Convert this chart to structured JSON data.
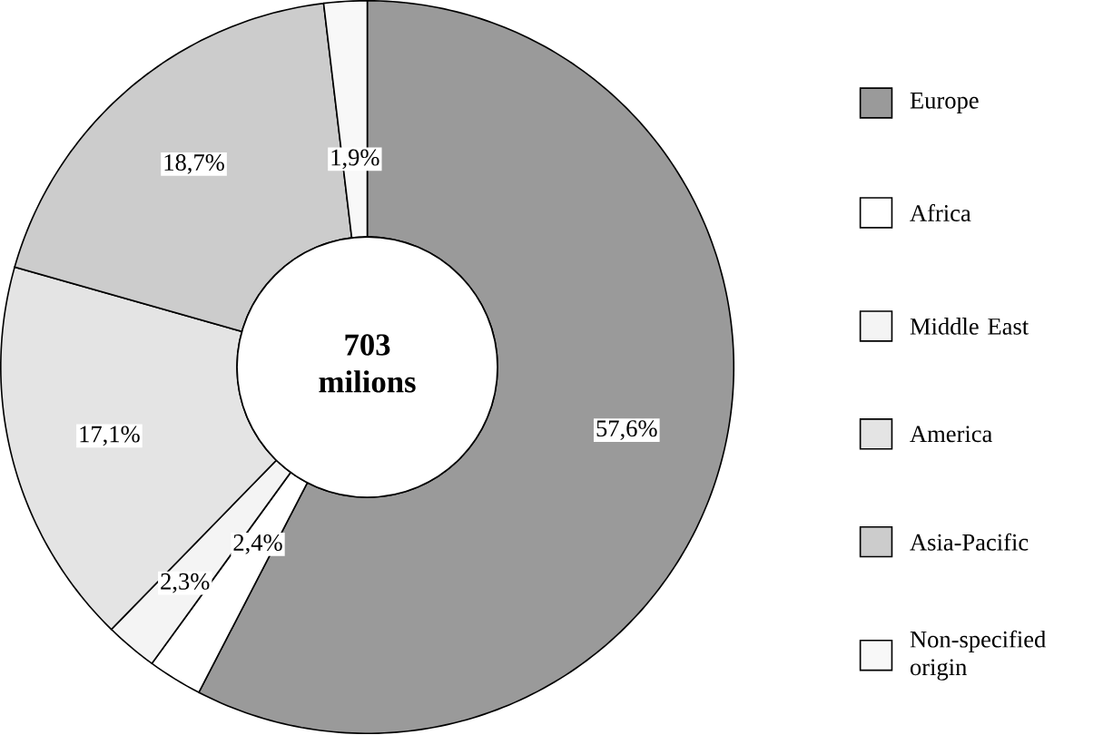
{
  "chart_data": {
    "type": "donut",
    "categories": [
      "Europe",
      "Africa",
      "Middle East",
      "America",
      "Asia-Pacific",
      "Non-specified origin"
    ],
    "values": [
      57.6,
      2.4,
      2.3,
      17.1,
      18.7,
      1.9
    ],
    "value_labels": [
      "57,6%",
      "2,4%",
      "2,3%",
      "17,1%",
      "18,7%",
      "1,9%"
    ],
    "colors": [
      "#9a9a9a",
      "#ffffff",
      "#f4f4f4",
      "#e4e4e4",
      "#cccccc",
      "#f8f8f8"
    ],
    "annotations": [
      "703 milions"
    ],
    "legend": "right"
  }
}
